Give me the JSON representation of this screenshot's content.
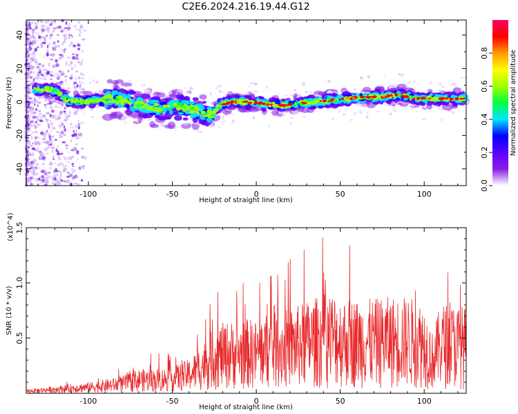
{
  "title": "C2E6.2024.216.19.44.G12",
  "colors": {
    "snr_line": "#e8282a",
    "colormap": [
      "#ffffff",
      "#8a1de6",
      "#5a00ff",
      "#0000ff",
      "#00e5ff",
      "#00ff40",
      "#a0ff00",
      "#ffff00",
      "#ff9900",
      "#ff0000",
      "#ff0066"
    ]
  },
  "chart_data": [
    {
      "type": "heatmap",
      "subtype": "spectrogram",
      "xlabel": "Height of straight line (km)",
      "ylabel": "Frequency (Hz)",
      "xlim": [
        -137,
        125
      ],
      "ylim": [
        -50,
        49
      ],
      "x_ticks": [
        -100,
        -50,
        0,
        50,
        100
      ],
      "y_ticks": [
        -40,
        -20,
        0,
        20,
        40
      ],
      "ridge": {
        "x": [
          -130,
          -120,
          -113,
          -105,
          -95,
          -85,
          -75,
          -65,
          -55,
          -45,
          -35,
          -27,
          -22,
          -15,
          -5,
          5,
          15,
          25,
          35,
          45,
          55,
          65,
          75,
          85,
          95,
          105,
          115,
          125
        ],
        "y": [
          8,
          7,
          1,
          0,
          1,
          2,
          0,
          -3,
          -4,
          -3,
          -5,
          -8,
          -2,
          0,
          0,
          -1,
          -2,
          -1,
          0,
          1,
          2,
          3,
          3,
          4,
          2,
          2,
          2,
          2
        ]
      },
      "colorbar": {
        "label": "Normalized spectral amplitude",
        "range": [
          0,
          1
        ],
        "ticks": [
          0.0,
          0.2,
          0.4,
          0.6,
          0.8
        ]
      },
      "grid": false
    },
    {
      "type": "line",
      "xlabel": "Height of straight line (km)",
      "ylabel": "SNR (10 * v/v)",
      "y_multiplier": "(x10^4)",
      "xlim": [
        -137,
        125
      ],
      "ylim": [
        0,
        1.5
      ],
      "x_ticks": [
        -100,
        -50,
        0,
        50,
        100
      ],
      "y_ticks": [
        0.5,
        1.0,
        1.5
      ],
      "envelope": {
        "x": [
          -137,
          -120,
          -100,
          -80,
          -70,
          -60,
          -50,
          -40,
          -35,
          -30,
          -25,
          -20,
          -15,
          -10,
          -5,
          0,
          5,
          10,
          20,
          30,
          40,
          45,
          50,
          60,
          70,
          80,
          90,
          100,
          105,
          110,
          125
        ],
        "y": [
          0.03,
          0.06,
          0.09,
          0.14,
          0.2,
          0.2,
          0.22,
          0.28,
          0.36,
          0.45,
          0.55,
          0.58,
          0.6,
          0.58,
          0.62,
          0.6,
          0.66,
          0.66,
          0.7,
          0.76,
          0.82,
          0.85,
          0.8,
          0.78,
          0.78,
          0.8,
          0.8,
          0.75,
          0.5,
          0.75,
          0.72
        ]
      },
      "grid": false
    }
  ]
}
